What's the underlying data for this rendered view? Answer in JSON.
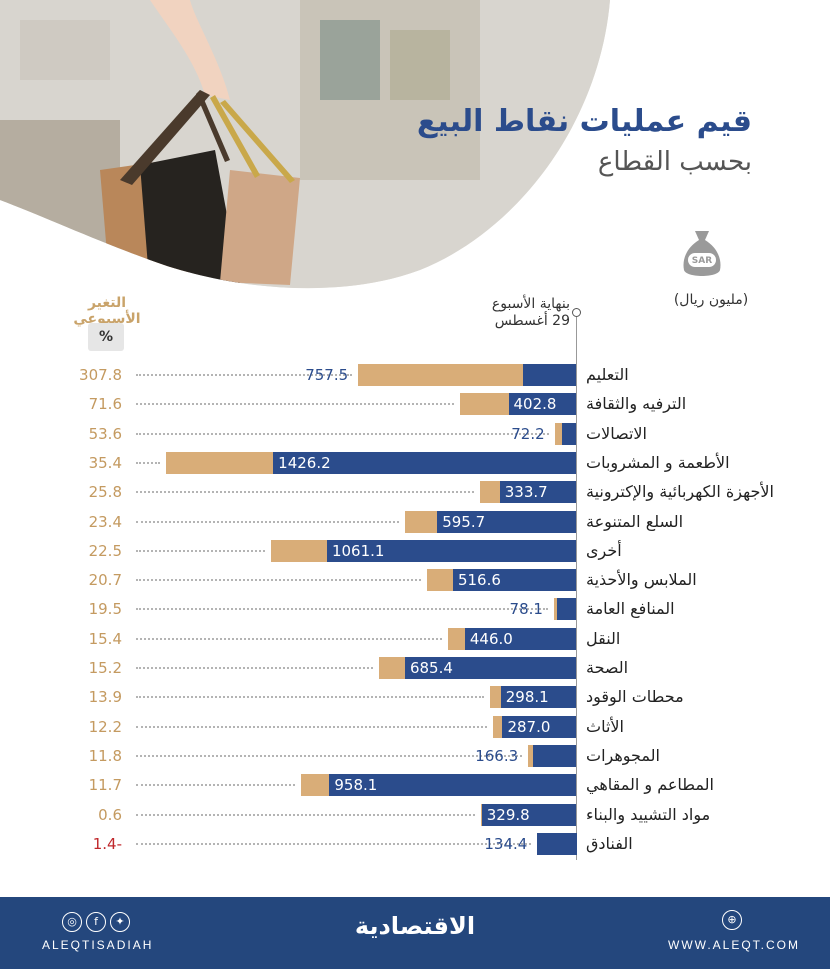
{
  "header": {
    "title": "قيم عمليات نقاط البيع",
    "subtitle": "بحسب القطاع",
    "unit": "(مليون ريال)",
    "bag_text": "SAR",
    "col_change": "التغير الأسبوعي",
    "col_change_unit": "%",
    "col_week_line1": "بنهاية الأسبوع",
    "col_week_line2": "29 أغسطس"
  },
  "colors": {
    "bar": "#2b4c8c",
    "change": "#d9ad78",
    "change_text": "#c49a60",
    "negative_text": "#c0282c"
  },
  "chart_data": {
    "type": "bar",
    "orientation": "horizontal",
    "categories": [
      "التعليم",
      "الترفيه والثقافة",
      "الاتصالات",
      "الأطعمة و المشروبات",
      "الأجهزة الكهربائية والإكترونية",
      "السلع المتنوعة",
      "أخرى",
      "الملابس والأحذية",
      "المنافع العامة",
      "النقل",
      "الصحة",
      "محطات الوقود",
      "الأثاث",
      "المجوهرات",
      "المطاعم و المقاهي",
      "مواد التشييد والبناء",
      "الفنادق"
    ],
    "series": [
      {
        "name": "بنهاية الأسبوع 29 أغسطس",
        "values": [
          757.5,
          402.8,
          72.2,
          1426.2,
          333.7,
          595.7,
          1061.1,
          516.6,
          78.1,
          446.0,
          685.4,
          298.1,
          287.0,
          166.3,
          958.1,
          329.8,
          134.4
        ]
      },
      {
        "name": "التغير الأسبوعي",
        "values": [
          307.8,
          71.6,
          53.6,
          35.4,
          25.8,
          23.4,
          22.5,
          20.7,
          19.5,
          15.4,
          15.2,
          13.9,
          12.2,
          11.8,
          11.7,
          0.6,
          -1.4
        ]
      }
    ],
    "value_labels": [
      "757.5",
      "402.8",
      "72.2",
      "1426.2",
      "333.7",
      "595.7",
      "1061.1",
      "516.6",
      "78.1",
      "446.0",
      "685.4",
      "298.1",
      "287.0",
      "166.3",
      "958.1",
      "329.8",
      "134.4"
    ],
    "change_labels": [
      "307.8",
      "71.6",
      "53.6",
      "35.4",
      "25.8",
      "23.4",
      "22.5",
      "20.7",
      "19.5",
      "15.4",
      "15.2",
      "13.9",
      "12.2",
      "11.8",
      "11.7",
      "0.6",
      "1.4-"
    ]
  },
  "footer": {
    "handle": "ALEQTISADIAH",
    "logo": "الاقتصادية",
    "website": "WWW.ALEQT.COM",
    "social_icons": [
      "instagram-icon",
      "facebook-icon",
      "twitter-icon"
    ],
    "web_icon": "globe-icon"
  }
}
